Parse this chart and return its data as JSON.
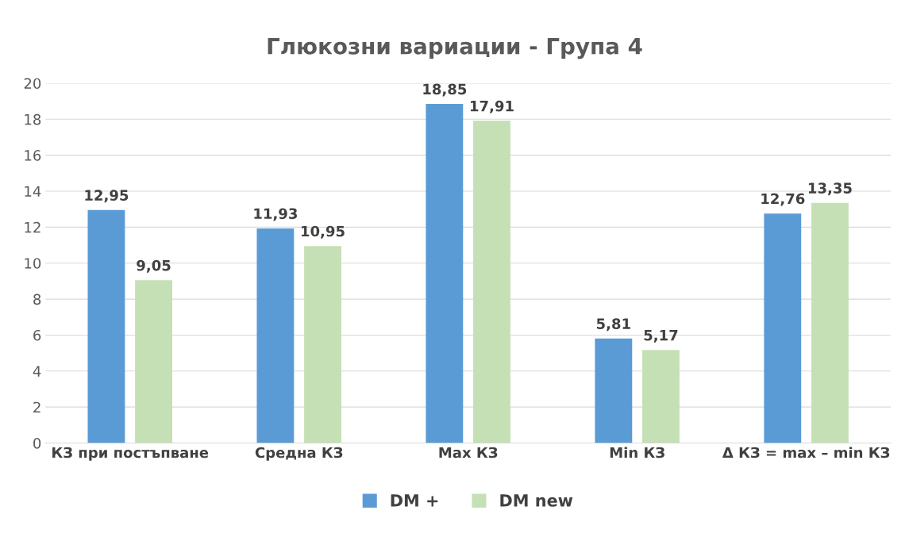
{
  "chart_data": {
    "type": "bar",
    "title": "Глюкозни вариации - Група 4",
    "categories": [
      "КЗ при постъпване",
      "Средна КЗ",
      "Max КЗ",
      "Min КЗ",
      "Δ КЗ = max – min КЗ"
    ],
    "series": [
      {
        "name": "DM +",
        "color": "#5b9bd5",
        "values": [
          12.95,
          11.93,
          18.85,
          5.81,
          12.76
        ],
        "value_labels": [
          "12,95",
          "11,93",
          "18,85",
          "5,81",
          "12,76"
        ]
      },
      {
        "name": "DM new",
        "color": "#c5e0b4",
        "values": [
          9.05,
          10.95,
          17.91,
          5.17,
          13.35
        ],
        "value_labels": [
          "9,05",
          "10,95",
          "17,91",
          "5,17",
          "13,35"
        ]
      }
    ],
    "ylim": [
      0,
      20
    ],
    "yticks": [
      0,
      2,
      4,
      6,
      8,
      10,
      12,
      14,
      16,
      18,
      20
    ],
    "grid": "y",
    "legend": "bottom"
  }
}
